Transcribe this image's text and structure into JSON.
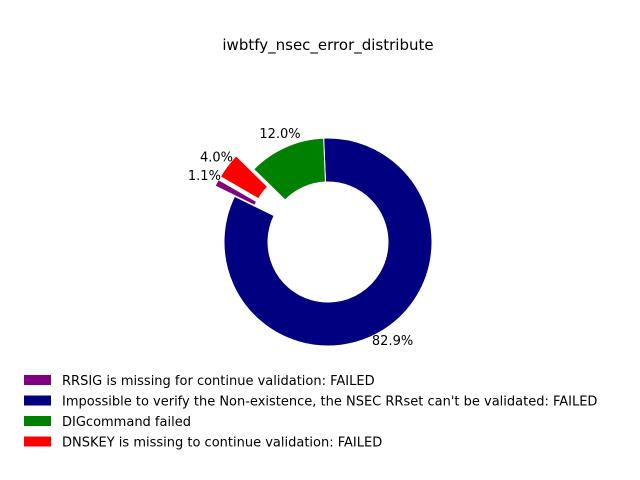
{
  "chart_data": {
    "type": "pie",
    "title": "iwbtfy_nsec_error_distribute",
    "donut": true,
    "legend_position": "bottom-left",
    "slices": [
      {
        "label": "RRSIG is missing for continue validation: FAILED",
        "percent": 1.1,
        "display": "1.1%",
        "color": "#800080",
        "exploded": true
      },
      {
        "label": "Impossible to verify the Non-existence, the NSEC RRset can't be validated: FAILED",
        "percent": 82.9,
        "display": "82.9%",
        "color": "#000080",
        "exploded": false
      },
      {
        "label": "DIGcommand failed",
        "percent": 12.0,
        "display": "12.0%",
        "color": "#008000",
        "exploded": false
      },
      {
        "label": "DNSKEY is missing to continue validation: FAILED",
        "percent": 4.0,
        "display": "4.0%",
        "color": "#ff0000",
        "exploded": true
      }
    ]
  }
}
